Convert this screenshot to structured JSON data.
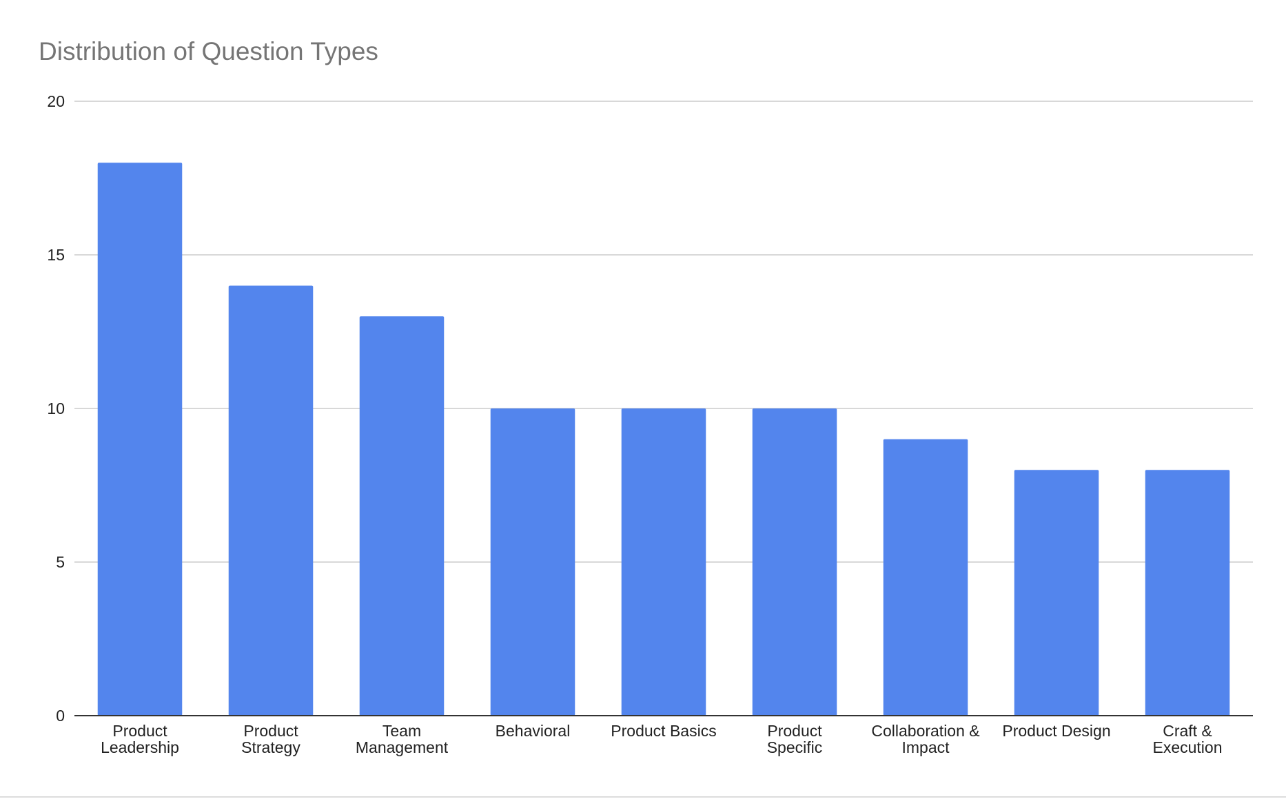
{
  "chart_data": {
    "type": "bar",
    "title": "Distribution of Question Types",
    "xlabel": "",
    "ylabel": "",
    "categories": [
      [
        "Product",
        "Leadership"
      ],
      [
        "Product",
        "Strategy"
      ],
      [
        "Team",
        "Management"
      ],
      [
        "Behavioral"
      ],
      [
        "Product Basics"
      ],
      [
        "Product",
        "Specific"
      ],
      [
        "Collaboration &",
        "Impact"
      ],
      [
        "Product Design"
      ],
      [
        "Craft &",
        "Execution"
      ]
    ],
    "values": [
      18,
      14,
      13,
      10,
      10,
      10,
      9,
      8,
      8
    ],
    "ylim": [
      0,
      20
    ],
    "yticks": [
      0,
      5,
      10,
      15,
      20
    ],
    "grid": true,
    "legend": "none",
    "bar_color": "#5385ed"
  }
}
